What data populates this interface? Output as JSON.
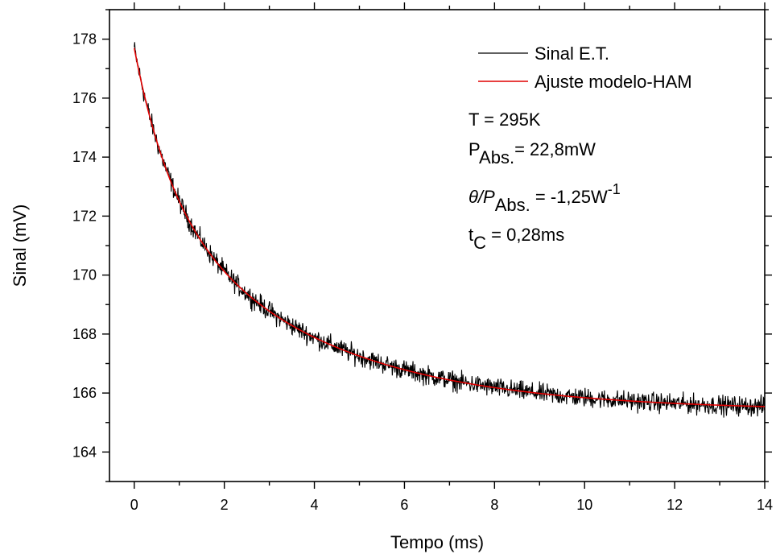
{
  "chart_data": {
    "type": "line",
    "xlabel": "Tempo (ms)",
    "ylabel": "Sinal (mV)",
    "xlim": [
      -0.55,
      14
    ],
    "ylim": [
      163,
      179
    ],
    "x_ticks": [
      0,
      2,
      4,
      6,
      8,
      10,
      12,
      14
    ],
    "y_ticks": [
      164,
      166,
      168,
      170,
      172,
      174,
      176,
      178
    ],
    "grid": false,
    "legend_position": "top-right",
    "series": [
      {
        "name": "Sinal E.T.",
        "color": "#000000",
        "model": {
          "form": "a + b*exp(-x/tau1) + c*exp(-x/tau2)",
          "a": 165.4,
          "b": 4.6,
          "tau1": 0.8,
          "c": 7.7,
          "tau2": 3.5
        },
        "noise_mV": 0.35,
        "x_range": [
          0,
          14
        ]
      },
      {
        "name": "Ajuste modelo-HAM",
        "color": "#e00000",
        "model": {
          "form": "a + b*exp(-x/tau1) + c*exp(-x/tau2)",
          "a": 165.4,
          "b": 4.6,
          "tau1": 0.8,
          "c": 7.7,
          "tau2": 3.5
        },
        "x_range": [
          0,
          14
        ]
      }
    ],
    "annotations": {
      "temperature": "T = 295K",
      "power_main": "P",
      "power_sub": "Abs.",
      "power_value": "= 22,8mW",
      "theta_symbol": "θ/P",
      "theta_sub": "Abs.",
      "theta_value": " = -1,25W",
      "theta_sup": "-1",
      "tc_main": "t",
      "tc_sub": "C",
      "tc_value": " = 0,28ms"
    }
  }
}
